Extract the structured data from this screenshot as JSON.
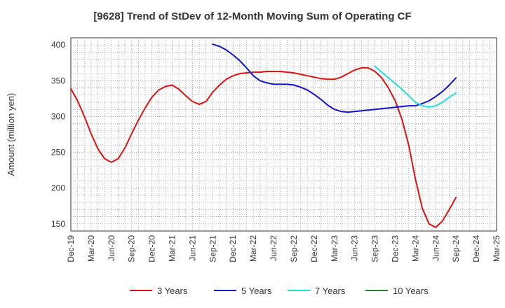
{
  "chart_data": {
    "type": "line",
    "title": "[9628]  Trend of StDev of 12-Month Moving Sum of Operating CF",
    "xlabel": "",
    "ylabel": "Amount (million yen)",
    "ylim": [
      140,
      410
    ],
    "yticks": [
      150,
      200,
      250,
      300,
      350,
      400
    ],
    "xlim": [
      "2019-12",
      "2025-03"
    ],
    "xticks": [
      "Dec-19",
      "Mar-20",
      "Jun-20",
      "Sep-20",
      "Dec-20",
      "Mar-21",
      "Jun-21",
      "Sep-21",
      "Dec-21",
      "Mar-22",
      "Jun-22",
      "Sep-22",
      "Dec-22",
      "Mar-23",
      "Jun-23",
      "Sep-23",
      "Dec-23",
      "Mar-24",
      "Jun-24",
      "Sep-24",
      "Dec-24",
      "Mar-25"
    ],
    "grid": true,
    "legend_position": "bottom",
    "series": [
      {
        "name": "3 Years",
        "color": "#dd1111",
        "points": [
          [
            "2019-12",
            339
          ],
          [
            "2020-01",
            322
          ],
          [
            "2020-02",
            300
          ],
          [
            "2020-03",
            276
          ],
          [
            "2020-04",
            255
          ],
          [
            "2020-05",
            241
          ],
          [
            "2020-06",
            236
          ],
          [
            "2020-07",
            241
          ],
          [
            "2020-08",
            256
          ],
          [
            "2020-09",
            276
          ],
          [
            "2020-10",
            295
          ],
          [
            "2020-11",
            312
          ],
          [
            "2020-12",
            327
          ],
          [
            "2021-01",
            337
          ],
          [
            "2021-02",
            342
          ],
          [
            "2021-03",
            344
          ],
          [
            "2021-04",
            338
          ],
          [
            "2021-05",
            329
          ],
          [
            "2021-06",
            321
          ],
          [
            "2021-07",
            317
          ],
          [
            "2021-08",
            321
          ],
          [
            "2021-09",
            334
          ],
          [
            "2021-10",
            344
          ],
          [
            "2021-11",
            352
          ],
          [
            "2021-12",
            357
          ],
          [
            "2022-01",
            360
          ],
          [
            "2022-02",
            361
          ],
          [
            "2022-03",
            362
          ],
          [
            "2022-04",
            362
          ],
          [
            "2022-05",
            363
          ],
          [
            "2022-06",
            363
          ],
          [
            "2022-07",
            363
          ],
          [
            "2022-08",
            362
          ],
          [
            "2022-09",
            361
          ],
          [
            "2022-10",
            359
          ],
          [
            "2022-11",
            357
          ],
          [
            "2022-12",
            355
          ],
          [
            "2023-01",
            353
          ],
          [
            "2023-02",
            352
          ],
          [
            "2023-03",
            352
          ],
          [
            "2023-04",
            355
          ],
          [
            "2023-05",
            360
          ],
          [
            "2023-06",
            365
          ],
          [
            "2023-07",
            368
          ],
          [
            "2023-08",
            368
          ],
          [
            "2023-09",
            363
          ],
          [
            "2023-10",
            354
          ],
          [
            "2023-11",
            340
          ],
          [
            "2023-12",
            322
          ],
          [
            "2024-01",
            296
          ],
          [
            "2024-02",
            260
          ],
          [
            "2024-03",
            212
          ],
          [
            "2024-04",
            172
          ],
          [
            "2024-05",
            150
          ],
          [
            "2024-06",
            145
          ],
          [
            "2024-07",
            154
          ],
          [
            "2024-08",
            170
          ],
          [
            "2024-09",
            187
          ]
        ]
      },
      {
        "name": "5 Years",
        "color": "#1111cc",
        "points": [
          [
            "2021-09",
            401
          ],
          [
            "2021-10",
            398
          ],
          [
            "2021-11",
            393
          ],
          [
            "2021-12",
            386
          ],
          [
            "2022-01",
            378
          ],
          [
            "2022-02",
            368
          ],
          [
            "2022-03",
            357
          ],
          [
            "2022-04",
            350
          ],
          [
            "2022-05",
            347
          ],
          [
            "2022-06",
            345
          ],
          [
            "2022-07",
            345
          ],
          [
            "2022-08",
            345
          ],
          [
            "2022-09",
            344
          ],
          [
            "2022-10",
            341
          ],
          [
            "2022-11",
            337
          ],
          [
            "2022-12",
            331
          ],
          [
            "2023-01",
            324
          ],
          [
            "2023-02",
            316
          ],
          [
            "2023-03",
            310
          ],
          [
            "2023-04",
            307
          ],
          [
            "2023-05",
            306
          ],
          [
            "2023-06",
            307
          ],
          [
            "2023-07",
            308
          ],
          [
            "2023-08",
            309
          ],
          [
            "2023-09",
            310
          ],
          [
            "2023-10",
            311
          ],
          [
            "2023-11",
            312
          ],
          [
            "2023-12",
            313
          ],
          [
            "2024-01",
            314
          ],
          [
            "2024-02",
            315
          ],
          [
            "2024-03",
            315
          ],
          [
            "2024-04",
            318
          ],
          [
            "2024-05",
            322
          ],
          [
            "2024-06",
            328
          ],
          [
            "2024-07",
            335
          ],
          [
            "2024-08",
            344
          ],
          [
            "2024-09",
            354
          ]
        ]
      },
      {
        "name": "7 Years",
        "color": "#22dddd",
        "points": [
          [
            "2023-09",
            370
          ],
          [
            "2023-10",
            362
          ],
          [
            "2023-11",
            354
          ],
          [
            "2023-12",
            346
          ],
          [
            "2024-01",
            338
          ],
          [
            "2024-02",
            329
          ],
          [
            "2024-03",
            320
          ],
          [
            "2024-04",
            315
          ],
          [
            "2024-05",
            313
          ],
          [
            "2024-06",
            315
          ],
          [
            "2024-07",
            320
          ],
          [
            "2024-08",
            327
          ],
          [
            "2024-09",
            333
          ]
        ]
      },
      {
        "name": "10 Years",
        "color": "#228822",
        "points": []
      }
    ]
  }
}
